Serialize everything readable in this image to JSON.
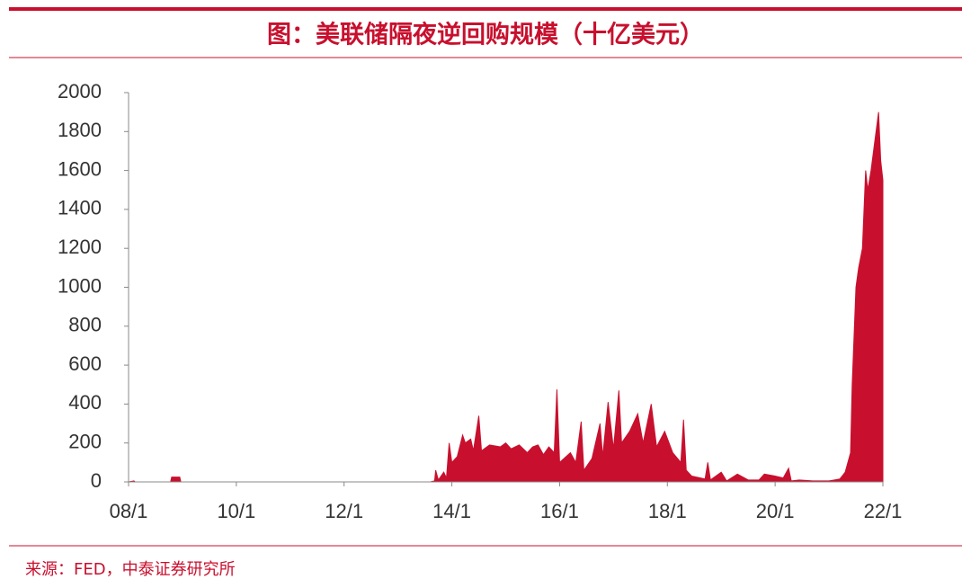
{
  "chart_data": {
    "type": "area",
    "title": "图：美联储隔夜逆回购规模（十亿美元）",
    "source": "来源：FED，中泰证券研究所",
    "color": "#c8102e",
    "x": [
      2008.0,
      2008.1,
      2008.12,
      2008.78,
      2008.8,
      2008.95,
      2008.97,
      2013.6,
      2013.68,
      2013.7,
      2013.75,
      2013.85,
      2013.9,
      2013.95,
      2014.0,
      2014.1,
      2014.2,
      2014.25,
      2014.35,
      2014.4,
      2014.5,
      2014.55,
      2014.7,
      2014.9,
      2015.0,
      2015.1,
      2015.25,
      2015.4,
      2015.5,
      2015.6,
      2015.7,
      2015.8,
      2015.9,
      2015.95,
      2016.0,
      2016.2,
      2016.3,
      2016.4,
      2016.45,
      2016.6,
      2016.75,
      2016.8,
      2016.9,
      2017.0,
      2017.1,
      2017.15,
      2017.3,
      2017.45,
      2017.55,
      2017.7,
      2017.8,
      2017.95,
      2018.1,
      2018.25,
      2018.3,
      2018.35,
      2018.45,
      2018.7,
      2018.75,
      2018.8,
      2019.0,
      2019.1,
      2019.3,
      2019.5,
      2019.7,
      2019.8,
      2020.0,
      2020.15,
      2020.25,
      2020.3,
      2020.45,
      2020.7,
      2021.0,
      2021.1,
      2021.2,
      2021.3,
      2021.4,
      2021.43,
      2021.5,
      2021.55,
      2021.62,
      2021.68,
      2021.72,
      2021.78,
      2021.85,
      2021.92,
      2021.96,
      2022.0
    ],
    "values": [
      0,
      5,
      0,
      0,
      25,
      25,
      0,
      0,
      5,
      60,
      10,
      50,
      20,
      200,
      100,
      130,
      240,
      200,
      220,
      160,
      340,
      160,
      190,
      180,
      200,
      170,
      190,
      150,
      180,
      190,
      140,
      180,
      150,
      475,
      100,
      150,
      100,
      310,
      60,
      120,
      300,
      130,
      410,
      170,
      470,
      200,
      260,
      350,
      200,
      400,
      180,
      260,
      150,
      100,
      320,
      60,
      30,
      15,
      100,
      10,
      50,
      5,
      40,
      10,
      10,
      40,
      30,
      20,
      70,
      5,
      10,
      5,
      5,
      10,
      15,
      50,
      150,
      500,
      1000,
      1100,
      1200,
      1600,
      1500,
      1600,
      1750,
      1900,
      1650,
      1550
    ],
    "xlim": [
      2008,
      2022
    ],
    "xticks": [
      {
        "value": 2008,
        "label": "08/1"
      },
      {
        "value": 2010,
        "label": "10/1"
      },
      {
        "value": 2012,
        "label": "12/1"
      },
      {
        "value": 2014,
        "label": "14/1"
      },
      {
        "value": 2016,
        "label": "16/1"
      },
      {
        "value": 2018,
        "label": "18/1"
      },
      {
        "value": 2020,
        "label": "20/1"
      },
      {
        "value": 2022,
        "label": "22/1"
      }
    ],
    "ylim": [
      0,
      2000
    ],
    "yticks": [
      0,
      200,
      400,
      600,
      800,
      1000,
      1200,
      1400,
      1600,
      1800,
      2000
    ],
    "grid": false
  }
}
